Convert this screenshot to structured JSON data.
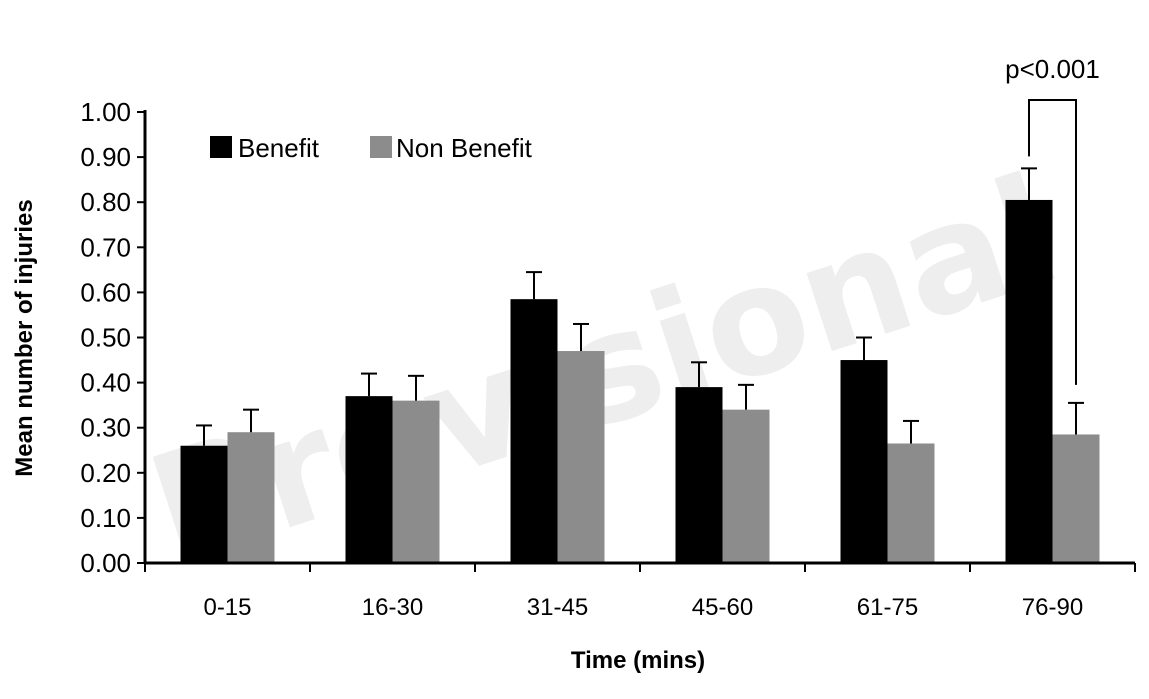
{
  "chart_data": {
    "type": "bar",
    "title": "",
    "xlabel": "Time (mins)",
    "ylabel": "Mean number of injuries",
    "ylim": [
      0,
      1.0
    ],
    "yticks": [
      "0.00",
      "0.10",
      "0.20",
      "0.30",
      "0.40",
      "0.50",
      "0.60",
      "0.70",
      "0.80",
      "0.90",
      "1.00"
    ],
    "categories": [
      "0-15",
      "16-30",
      "31-45",
      "45-60",
      "61-75",
      "76-90"
    ],
    "series": [
      {
        "name": "Benefit",
        "color": "#000000",
        "values": [
          0.26,
          0.37,
          0.585,
          0.39,
          0.45,
          0.805
        ],
        "errors": [
          0.045,
          0.05,
          0.06,
          0.055,
          0.05,
          0.07
        ]
      },
      {
        "name": "Non Benefit",
        "color": "#8c8c8c",
        "values": [
          0.29,
          0.36,
          0.47,
          0.34,
          0.265,
          0.285
        ],
        "errors": [
          0.05,
          0.055,
          0.06,
          0.055,
          0.05,
          0.07
        ]
      }
    ],
    "legend_position": "top-left",
    "grid": false,
    "annotation": {
      "text": "p<0.001",
      "category": "76-90"
    }
  },
  "watermark": "Provisional"
}
